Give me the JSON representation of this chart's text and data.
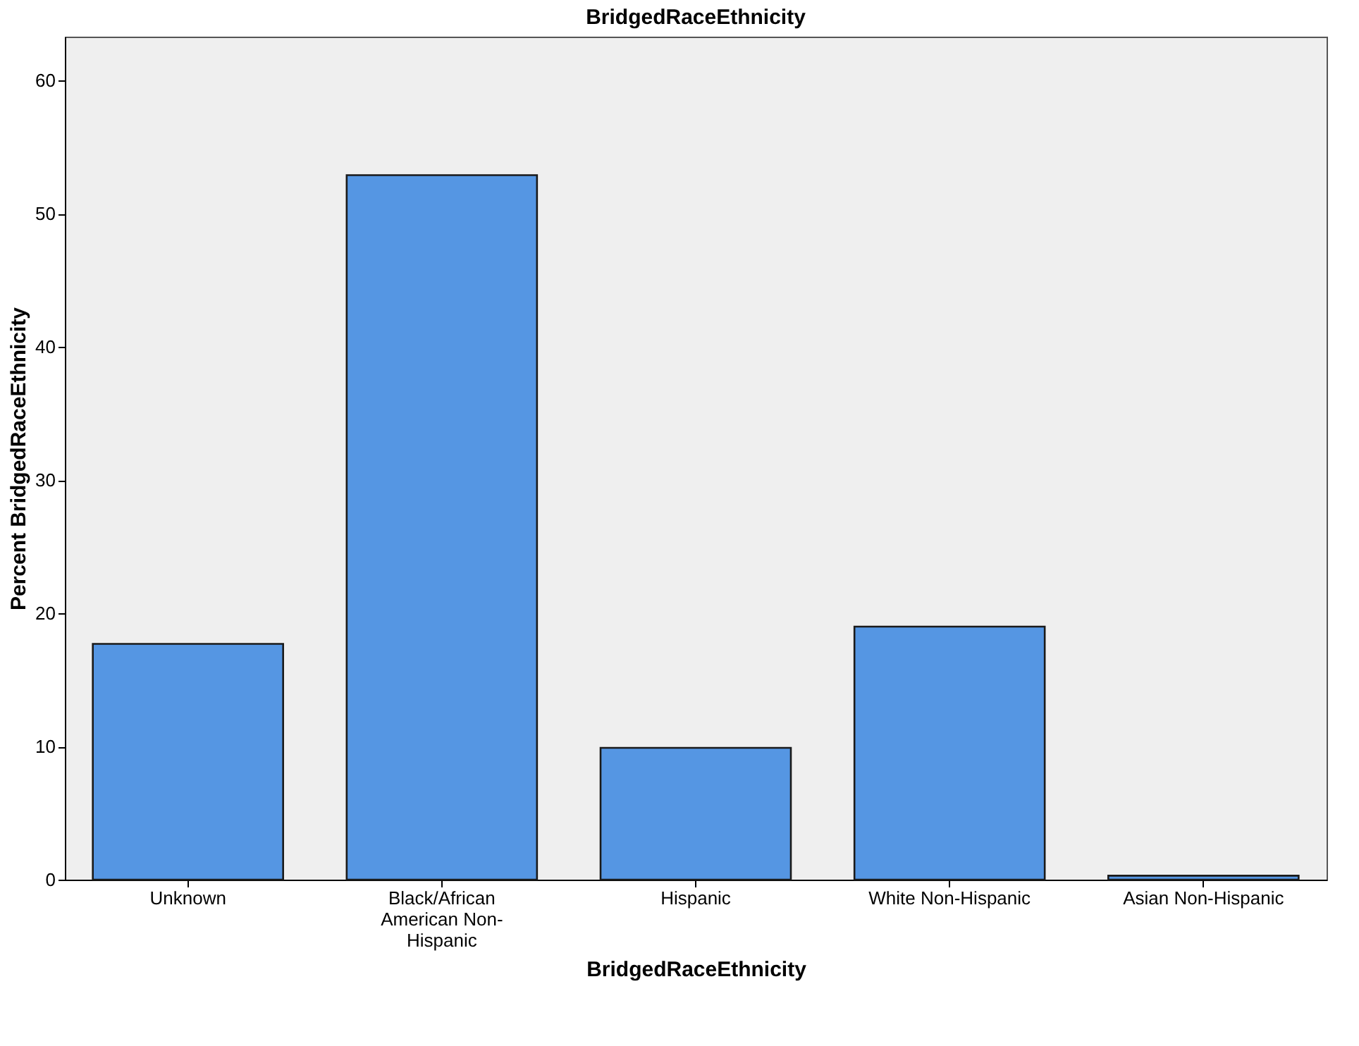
{
  "chart_data": {
    "type": "bar",
    "title": "BridgedRaceEthnicity",
    "xlabel": "BridgedRaceEthnicity",
    "ylabel": "Percent BridgedRaceEthnicity",
    "categories": [
      "Unknown",
      "Black/African American Non-Hispanic",
      "Hispanic",
      "White Non-Hispanic",
      "Asian Non-Hispanic"
    ],
    "values": [
      17.7,
      52.9,
      9.9,
      19.0,
      0.3
    ],
    "color": "#5596e3",
    "ylim": [
      0,
      63.3
    ],
    "yticks": [
      0,
      10,
      20,
      30,
      40,
      50,
      60
    ],
    "grid": false
  }
}
